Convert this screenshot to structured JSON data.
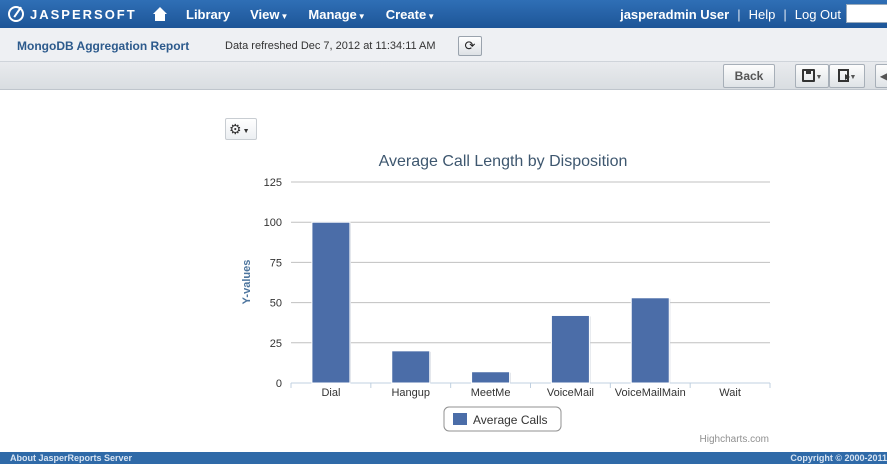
{
  "topbar": {
    "logo_text": "JASPERSOFT",
    "nav": [
      {
        "label": "Library",
        "dropdown": false
      },
      {
        "label": "View",
        "dropdown": true
      },
      {
        "label": "Manage",
        "dropdown": true
      },
      {
        "label": "Create",
        "dropdown": true
      }
    ],
    "user": "jasperadmin User",
    "help": "Help",
    "logout": "Log Out",
    "separator": "|"
  },
  "report": {
    "title": "MongoDB Aggregation Report",
    "refreshed": "Data refreshed Dec 7, 2012 at 11:34:11 AM",
    "refresh_icon": "refresh-icon"
  },
  "toolbar": {
    "back_label": "Back",
    "save_icon": "save-icon",
    "export_icon": "export-icon"
  },
  "chart_data": {
    "type": "bar",
    "title": "Average Call Length by Disposition",
    "xlabel": "",
    "ylabel": "Y-values",
    "categories": [
      "Dial",
      "Hangup",
      "MeetMe",
      "VoiceMail",
      "VoiceMailMain",
      "Wait"
    ],
    "series": [
      {
        "name": "Average Calls",
        "values": [
          100,
          20,
          7,
          42,
          53,
          0
        ],
        "color": "#4b6da8"
      }
    ],
    "ylim": [
      0,
      125
    ],
    "yticks": [
      0,
      25,
      50,
      75,
      100,
      125
    ],
    "grid": true,
    "legend": "bottom-center",
    "credits": "Highcharts.com"
  },
  "footer": {
    "about": "About JasperReports Server",
    "copyright": "Copyright © 2000-2011"
  }
}
